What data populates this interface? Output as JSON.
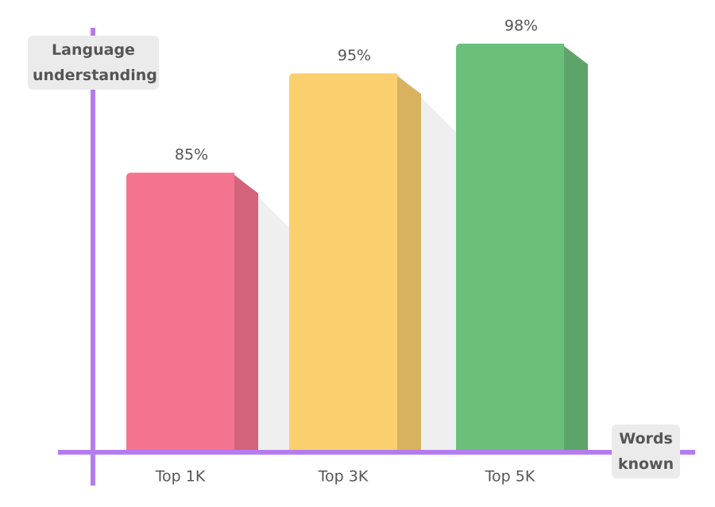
{
  "chart_data": {
    "type": "bar3d",
    "y_label": "Language understanding",
    "x_label": "Words known",
    "categories": [
      "Top 1K",
      "Top 3K",
      "Top 5K"
    ],
    "values": [
      85,
      95,
      98
    ],
    "value_labels": [
      "85%",
      "95%",
      "98%"
    ],
    "colors": [
      "#f4738f",
      "#fbcf6e",
      "#6cbf7b"
    ],
    "axis_color": "#b57cf0",
    "ylim": [
      57,
      100
    ]
  }
}
